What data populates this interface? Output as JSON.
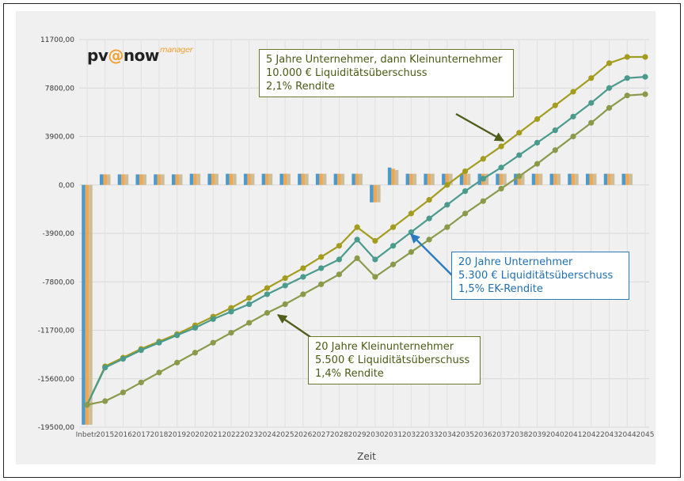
{
  "logo": {
    "pv": "pv",
    "at": "@",
    "now": "now",
    "manager": "manager"
  },
  "annotations": {
    "top": [
      "5 Jahre Unternehmer, dann Kleinunternehmer",
      "10.000 € Liquiditätsüberschuss",
      "2,1% Rendite"
    ],
    "blue": [
      "20 Jahre Unternehmer",
      "5.300 € Liquiditätsüberschuss",
      "1,5% EK-Rendite"
    ],
    "bottom": [
      "20 Jahre Kleinunternehmer",
      "5.500 € Liquiditätsüberschuss",
      "1,4% Rendite"
    ]
  },
  "colors": {
    "line_top": "#a39c1f",
    "line_blue": "#4a9a8e",
    "line_bottom": "#8a9a4a",
    "bar_blue": "#3a8fc6",
    "bar_orange": "#f0a040",
    "bar_tan": "#c8b890",
    "arrow_green": "#4f5f1a",
    "arrow_blue": "#2b7bbf"
  },
  "chart_data": {
    "type": "line",
    "xlabel": "Zeit",
    "ylabel": "",
    "ylim": [
      -19500,
      11700
    ],
    "yticks": [
      "11700,00",
      "7800,00",
      "3900,00",
      "0,00",
      "-3900,00",
      "-7800,00",
      "-11700,00",
      "-15600,00",
      "-19500,00"
    ],
    "ytick_values": [
      11700,
      7800,
      3900,
      0,
      -3900,
      -7800,
      -11700,
      -15600,
      -19500
    ],
    "categories": [
      "Inbetr.",
      "2015",
      "2016",
      "2017",
      "2018",
      "2019",
      "2020",
      "2021",
      "2022",
      "2023",
      "2024",
      "2025",
      "2026",
      "2027",
      "2028",
      "2029",
      "2030",
      "2031",
      "2032",
      "2033",
      "2034",
      "2035",
      "2036",
      "2037",
      "2038",
      "2039",
      "2040",
      "2041",
      "2042",
      "2043",
      "2044",
      "2045"
    ],
    "series": [
      {
        "values": [
          -17700,
          -14600,
          -13900,
          -13200,
          -12600,
          -12000,
          -11300,
          -10600,
          -9900,
          -9100,
          -8300,
          -7500,
          -6700,
          -5800,
          -4900,
          -3400,
          -4500,
          -3400,
          -2300,
          -1200,
          0,
          1100,
          2100,
          3100,
          4200,
          5300,
          6400,
          7500,
          8600,
          9800,
          10300,
          10300
        ]
      },
      {
        "values": [
          -17700,
          -14700,
          -14000,
          -13300,
          -12700,
          -12100,
          -11500,
          -10800,
          -10200,
          -9600,
          -8800,
          -8100,
          -7400,
          -6700,
          -6000,
          -4400,
          -6000,
          -4900,
          -3800,
          -2700,
          -1600,
          -500,
          500,
          1400,
          2400,
          3400,
          4400,
          5500,
          6600,
          7800,
          8600,
          8700
        ]
      },
      {
        "values": [
          -17700,
          -17400,
          -16700,
          -15900,
          -15100,
          -14300,
          -13500,
          -12700,
          -11900,
          -11100,
          -10300,
          -9600,
          -8800,
          -8000,
          -7200,
          -5900,
          -7400,
          -6400,
          -5400,
          -4400,
          -3400,
          -2300,
          -1300,
          -300,
          700,
          1700,
          2800,
          3900,
          5000,
          6200,
          7200,
          7300
        ]
      }
    ],
    "bars": {
      "series": [
        {
          "values": [
            -19300,
            850,
            850,
            850,
            850,
            850,
            900,
            900,
            900,
            900,
            900,
            900,
            900,
            900,
            900,
            900,
            -1400,
            1400,
            900,
            900,
            900,
            900,
            900,
            900,
            900,
            900,
            900,
            900,
            900,
            900,
            900,
            0
          ]
        },
        {
          "values": [
            -19300,
            850,
            850,
            850,
            850,
            850,
            900,
            900,
            900,
            900,
            900,
            900,
            900,
            900,
            900,
            900,
            -1400,
            1300,
            900,
            900,
            900,
            900,
            900,
            900,
            900,
            900,
            900,
            900,
            900,
            900,
            900,
            0
          ]
        },
        {
          "values": [
            -19300,
            850,
            850,
            850,
            850,
            850,
            900,
            900,
            900,
            900,
            900,
            900,
            900,
            900,
            900,
            900,
            -1400,
            1200,
            900,
            900,
            900,
            900,
            900,
            900,
            900,
            900,
            900,
            900,
            900,
            900,
            900,
            0
          ]
        }
      ]
    },
    "grid": true,
    "legend": "none"
  }
}
